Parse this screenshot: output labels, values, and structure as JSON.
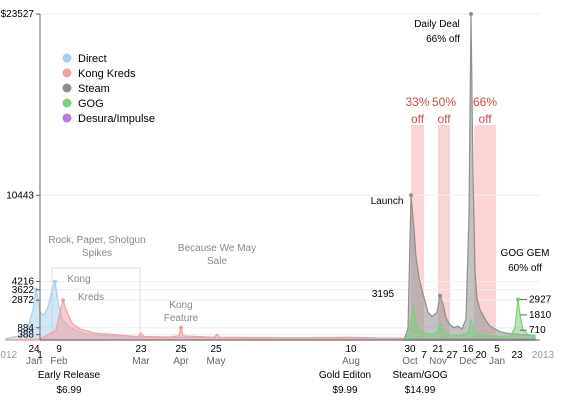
{
  "chart_data": {
    "type": "area",
    "y_ticks_left": [
      388,
      884,
      2872,
      3622,
      4216,
      10443,
      23527
    ],
    "y_tick_labels_left": [
      "388",
      "884",
      "2872",
      "3622",
      "4216",
      "10443",
      "$23527"
    ],
    "y_ticks_right": [
      710,
      1810,
      2927
    ],
    "y_max": 23527,
    "x_labels": [
      {
        "t": 6,
        "label": "2012",
        "color": "#999999"
      },
      {
        "t": 34,
        "label": "24",
        "month": "Jan"
      },
      {
        "t": 40,
        "label": "1"
      },
      {
        "t": 59,
        "label": "9",
        "month": "Feb"
      },
      {
        "t": 141,
        "label": "23",
        "month": "Mar"
      },
      {
        "t": 181,
        "label": "25",
        "month": "Apr"
      },
      {
        "t": 216,
        "label": "25",
        "month": "May"
      },
      {
        "t": 351,
        "label": "10",
        "month": "Aug"
      },
      {
        "t": 410,
        "label": "30",
        "month": "Oct"
      },
      {
        "t": 424,
        "label": "7"
      },
      {
        "t": 438,
        "label": "21",
        "month": "Nov"
      },
      {
        "t": 452,
        "label": "27"
      },
      {
        "t": 468,
        "label": "16",
        "month": "Dec"
      },
      {
        "t": 481,
        "label": "20"
      },
      {
        "t": 497,
        "label": "5",
        "month": "Jan"
      },
      {
        "t": 517,
        "label": "23"
      },
      {
        "t": 543,
        "label": "2013",
        "color": "#999999"
      }
    ],
    "legend": [
      {
        "name": "Direct",
        "color": "#a9cfee"
      },
      {
        "name": "Kong Kreds",
        "color": "#f4a0a0"
      },
      {
        "name": "Steam",
        "color": "#8f8f8f"
      },
      {
        "name": "GOG",
        "color": "#7ccf7c"
      },
      {
        "name": "Desura/Impulse",
        "color": "#b07fe0"
      }
    ],
    "sale_bands": [
      {
        "t0": 411,
        "t1": 424,
        "label_line1": "33%",
        "label_line2": "off"
      },
      {
        "t0": 438,
        "t1": 450,
        "label_line1": "50%",
        "label_line2": "off"
      },
      {
        "t0": 474,
        "t1": 496,
        "label_line1": "66%",
        "label_line2": "off"
      }
    ],
    "annotations": [
      {
        "text": "Rock, Paper, Shotgun",
        "t": 97,
        "row": 0,
        "color": "#888888"
      },
      {
        "text": "Spikes",
        "t": 97,
        "row": 1,
        "color": "#888888"
      },
      {
        "text": "Kong",
        "t": 79,
        "row": 2,
        "color": "#888888"
      },
      {
        "text": "Kreds",
        "t": 91,
        "row": 3,
        "color": "#888888"
      },
      {
        "text": "Because We May",
        "t": 217,
        "row": 4,
        "color": "#888888"
      },
      {
        "text": "Sale",
        "t": 217,
        "row": 5,
        "color": "#888888"
      },
      {
        "text": "Kong",
        "t": 181,
        "row": 6,
        "color": "#888888"
      },
      {
        "text": "Feature",
        "t": 181,
        "row": 7,
        "color": "#888888"
      },
      {
        "text": "Launch",
        "t": 387,
        "row": 8,
        "color": "#000000"
      },
      {
        "text": "Daily Deal",
        "t": 437,
        "row": 9,
        "color": "#000000"
      },
      {
        "text": "66% off",
        "t": 443,
        "row": 10,
        "color": "#000000"
      },
      {
        "text": "GOG GEM",
        "t": 525,
        "row": 11,
        "color": "#000000"
      },
      {
        "text": "60% off",
        "t": 525,
        "row": 12,
        "color": "#000000"
      },
      {
        "text": "3195",
        "t": 383,
        "row": 13,
        "color": "#000000"
      }
    ],
    "bottom_labels": [
      {
        "line1": "Early Release",
        "line2": "$6.99",
        "t": 69
      },
      {
        "line1": "Gold Editon",
        "line2": "$9.99",
        "t": 345
      },
      {
        "line1": "Steam/GOG",
        "line2": "$14.99",
        "t": 420
      }
    ],
    "series": [
      {
        "name": "Direct",
        "color": "#a9cfee",
        "points": [
          [
            6,
            100
          ],
          [
            20,
            300
          ],
          [
            28,
            900
          ],
          [
            33,
            2200
          ],
          [
            36,
            3622
          ],
          [
            38,
            3000
          ],
          [
            40,
            2000
          ],
          [
            44,
            1800
          ],
          [
            48,
            2400
          ],
          [
            52,
            3600
          ],
          [
            55,
            4216
          ],
          [
            58,
            2800
          ],
          [
            62,
            1500
          ],
          [
            70,
            900
          ],
          [
            85,
            450
          ],
          [
            110,
            300
          ],
          [
            150,
            200
          ],
          [
            200,
            180
          ],
          [
            300,
            150
          ],
          [
            400,
            100
          ],
          [
            520,
            60
          ]
        ]
      },
      {
        "name": "Kong Kreds",
        "color": "#f4a0a0",
        "points": [
          [
            6,
            20
          ],
          [
            40,
            60
          ],
          [
            56,
            700
          ],
          [
            60,
            2000
          ],
          [
            63,
            2872
          ],
          [
            66,
            2200
          ],
          [
            72,
            1200
          ],
          [
            80,
            800
          ],
          [
            95,
            500
          ],
          [
            120,
            350
          ],
          [
            138,
            250
          ],
          [
            141,
            500
          ],
          [
            144,
            250
          ],
          [
            170,
            220
          ],
          [
            179,
            300
          ],
          [
            181,
            884
          ],
          [
            183,
            300
          ],
          [
            214,
            200
          ],
          [
            217,
            400
          ],
          [
            220,
            200
          ],
          [
            300,
            160
          ],
          [
            350,
            200
          ],
          [
            380,
            150
          ],
          [
            420,
            120
          ],
          [
            470,
            100
          ],
          [
            520,
            80
          ],
          [
            535,
            70
          ]
        ]
      },
      {
        "name": "Steam",
        "color": "#8f8f8f",
        "points": [
          [
            404,
            0
          ],
          [
            408,
            800
          ],
          [
            411,
            10443
          ],
          [
            414,
            8000
          ],
          [
            416,
            6000
          ],
          [
            419,
            4500
          ],
          [
            422,
            3600
          ],
          [
            425,
            2800
          ],
          [
            428,
            2000
          ],
          [
            432,
            1700
          ],
          [
            437,
            2000
          ],
          [
            440,
            3195
          ],
          [
            443,
            2600
          ],
          [
            446,
            1600
          ],
          [
            450,
            1100
          ],
          [
            454,
            900
          ],
          [
            458,
            1000
          ],
          [
            462,
            800
          ],
          [
            466,
            1500
          ],
          [
            469,
            9000
          ],
          [
            471,
            23527
          ],
          [
            473,
            12000
          ],
          [
            475,
            5000
          ],
          [
            477,
            3000
          ],
          [
            480,
            2200
          ],
          [
            483,
            1800
          ],
          [
            486,
            1400
          ],
          [
            490,
            1000
          ],
          [
            495,
            800
          ],
          [
            500,
            600
          ],
          [
            510,
            450
          ],
          [
            520,
            400
          ],
          [
            535,
            300
          ]
        ]
      },
      {
        "name": "GOG",
        "color": "#7ccf7c",
        "points": [
          [
            404,
            0
          ],
          [
            409,
            500
          ],
          [
            413,
            2500
          ],
          [
            416,
            1200
          ],
          [
            420,
            700
          ],
          [
            425,
            500
          ],
          [
            432,
            400
          ],
          [
            438,
            600
          ],
          [
            441,
            1200
          ],
          [
            444,
            500
          ],
          [
            450,
            350
          ],
          [
            460,
            300
          ],
          [
            468,
            500
          ],
          [
            471,
            1500
          ],
          [
            474,
            600
          ],
          [
            480,
            350
          ],
          [
            490,
            300
          ],
          [
            500,
            250
          ],
          [
            510,
            280
          ],
          [
            515,
            900
          ],
          [
            518,
            2927
          ],
          [
            520,
            1810
          ],
          [
            523,
            700
          ],
          [
            528,
            400
          ],
          [
            535,
            300
          ]
        ]
      },
      {
        "name": "Desura/Impulse",
        "color": "#b07fe0",
        "points": [
          [
            404,
            0
          ],
          [
            440,
            30
          ],
          [
            500,
            40
          ],
          [
            535,
            30
          ]
        ]
      }
    ]
  }
}
